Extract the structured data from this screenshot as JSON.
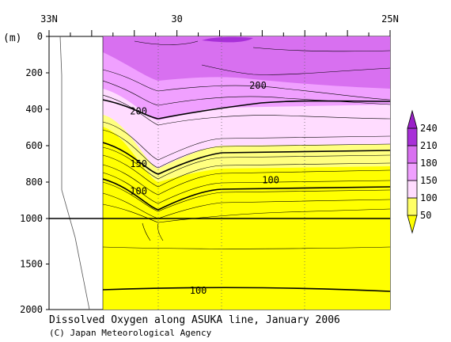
{
  "caption": {
    "title": "Dissolved Oxygen along ASUKA line, January 2006",
    "credit": "(C) Japan Meteorological Agency"
  },
  "chart_data": {
    "type": "heatmap",
    "title": "Dissolved Oxygen along ASUKA line, January 2006",
    "x_tick_labels": [
      "33N",
      "30",
      "25N"
    ],
    "y_unit_label": "(m)",
    "y_ticks_upper": [
      "0",
      "200",
      "400",
      "600",
      "800",
      "1000"
    ],
    "y_ticks_lower": [
      "1500",
      "2000"
    ],
    "ylim_upper": [
      0,
      1000
    ],
    "ylim_lower": [
      1000,
      2000
    ],
    "colorbar": {
      "levels": [
        "50",
        "100",
        "150",
        "180",
        "210",
        "240"
      ],
      "colors": [
        "#ffff00",
        "#ffff66",
        "#ffdcff",
        "#f0a0ff",
        "#d870f0",
        "#a830d8"
      ]
    },
    "contour_labels": [
      {
        "text": "200",
        "lat": 28.1,
        "depth": 270
      },
      {
        "text": "200",
        "lat": 30.9,
        "depth": 410
      },
      {
        "text": "150",
        "lat": 30.9,
        "depth": 700
      },
      {
        "text": "100",
        "lat": 30.9,
        "depth": 850
      },
      {
        "text": "100",
        "lat": 27.8,
        "depth": 790
      },
      {
        "text": "100",
        "lat": 29.5,
        "depth": 1790
      }
    ]
  }
}
